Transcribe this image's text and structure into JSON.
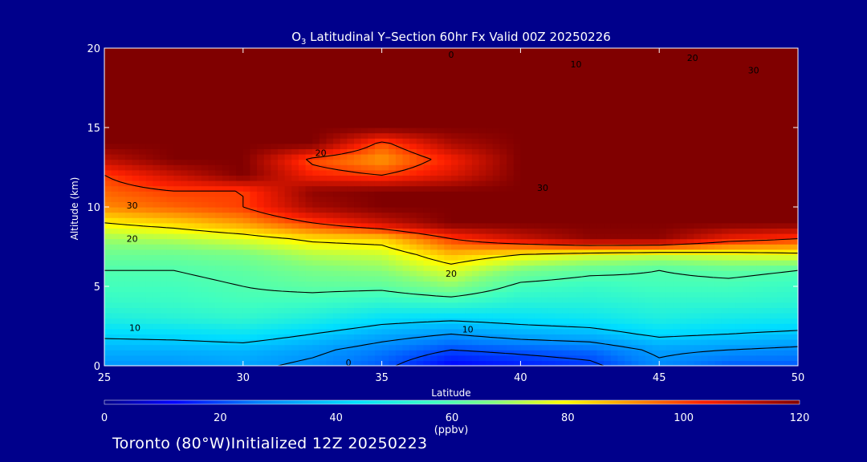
{
  "chart_data": {
    "type": "heatmap",
    "title_main": "O",
    "title_sub": "3",
    "title_rest": " Latitudinal Y–Section 60hr  Fx Valid 00Z 20250226",
    "xlabel": "Latitude",
    "ylabel": "Altitude (km)",
    "xlim": [
      25,
      50
    ],
    "ylim": [
      0,
      20
    ],
    "xticks": [
      "25",
      "30",
      "35",
      "40",
      "45",
      "50"
    ],
    "yticks": [
      "0",
      "5",
      "10",
      "15",
      "20"
    ],
    "colorbar": {
      "min": 0,
      "max": 120,
      "ticks": [
        "0",
        "20",
        "40",
        "60",
        "80",
        "100",
        "120"
      ],
      "unit": "(ppbv)"
    },
    "x": [
      25,
      27.5,
      30,
      32.5,
      35,
      37.5,
      40,
      42.5,
      45,
      47.5,
      50
    ],
    "y": [
      0,
      1,
      2,
      3,
      4,
      5,
      6,
      7,
      8,
      9,
      10,
      11,
      12,
      13,
      14,
      15,
      16,
      17,
      18,
      19,
      20
    ],
    "values": [
      [
        30,
        30,
        32,
        28,
        22,
        12,
        15,
        18,
        28,
        22,
        22
      ],
      [
        35,
        35,
        36,
        32,
        26,
        20,
        22,
        24,
        32,
        30,
        28
      ],
      [
        42,
        43,
        45,
        40,
        34,
        30,
        34,
        36,
        42,
        40,
        38
      ],
      [
        50,
        52,
        54,
        50,
        44,
        42,
        44,
        46,
        50,
        48,
        47
      ],
      [
        55,
        56,
        58,
        57,
        54,
        56,
        52,
        52,
        54,
        54,
        53
      ],
      [
        58,
        58,
        60,
        62,
        62,
        68,
        58,
        56,
        58,
        58,
        56
      ],
      [
        60,
        60,
        62,
        66,
        68,
        76,
        66,
        62,
        60,
        62,
        60
      ],
      [
        64,
        64,
        66,
        72,
        74,
        86,
        80,
        76,
        74,
        76,
        78
      ],
      [
        70,
        72,
        76,
        82,
        84,
        100,
        110,
        118,
        118,
        105,
        100
      ],
      [
        80,
        84,
        90,
        100,
        110,
        120,
        120,
        120,
        120,
        120,
        120
      ],
      [
        92,
        96,
        100,
        115,
        120,
        120,
        120,
        120,
        120,
        120,
        120
      ],
      [
        96,
        100,
        100,
        118,
        120,
        120,
        120,
        120,
        120,
        120,
        120
      ],
      [
        100,
        110,
        120,
        104,
        100,
        108,
        120,
        120,
        120,
        120,
        120
      ],
      [
        112,
        120,
        120,
        98,
        90,
        104,
        120,
        120,
        120,
        120,
        120
      ],
      [
        120,
        120,
        120,
        120,
        98,
        114,
        120,
        120,
        120,
        120,
        120
      ],
      [
        120,
        120,
        120,
        120,
        120,
        120,
        120,
        120,
        120,
        120,
        120
      ],
      [
        120,
        120,
        120,
        120,
        120,
        120,
        120,
        120,
        120,
        120,
        120
      ],
      [
        120,
        120,
        120,
        120,
        120,
        120,
        120,
        120,
        120,
        120,
        120
      ],
      [
        120,
        120,
        120,
        120,
        120,
        120,
        120,
        120,
        120,
        120,
        120
      ],
      [
        120,
        120,
        120,
        120,
        120,
        120,
        120,
        120,
        120,
        120,
        120
      ],
      [
        120,
        120,
        120,
        120,
        120,
        120,
        120,
        120,
        120,
        120,
        120
      ]
    ],
    "contour_labels": [
      {
        "text": "0",
        "x": 37.5,
        "y": 19.6
      },
      {
        "text": "10",
        "x": 42.0,
        "y": 19.0
      },
      {
        "text": "20",
        "x": 46.2,
        "y": 19.4
      },
      {
        "text": "30",
        "x": 48.4,
        "y": 18.6
      },
      {
        "text": "20",
        "x": 32.8,
        "y": 13.4
      },
      {
        "text": "30",
        "x": 26.0,
        "y": 10.1
      },
      {
        "text": "20",
        "x": 26.0,
        "y": 8.0
      },
      {
        "text": "30",
        "x": 40.8,
        "y": 11.2
      },
      {
        "text": "20",
        "x": 37.5,
        "y": 5.8
      },
      {
        "text": "10",
        "x": 26.1,
        "y": 2.4
      },
      {
        "text": "10",
        "x": 38.1,
        "y": 2.3
      },
      {
        "text": "0",
        "x": 33.8,
        "y": 0.2
      }
    ]
  },
  "footer": "Toronto (80°W)Initialized 12Z 20250223"
}
